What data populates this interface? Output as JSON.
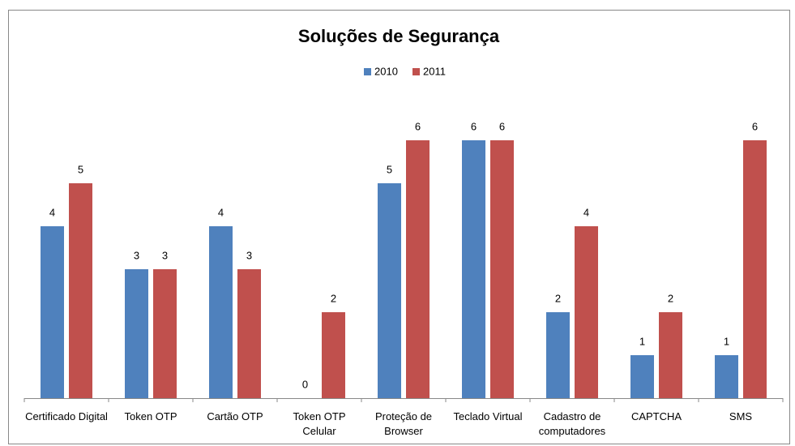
{
  "chart_data": {
    "type": "bar",
    "title": "Soluções de Segurança",
    "categories": [
      "Certificado Digital",
      "Token OTP",
      "Cartão OTP",
      "Token OTP Celular",
      "Proteção de Browser",
      "Teclado Virtual",
      "Cadastro de computadores",
      "CAPTCHA",
      "SMS"
    ],
    "series": [
      {
        "name": "2010",
        "color": "#4f81bd",
        "values": [
          4,
          3,
          4,
          0,
          5,
          6,
          2,
          1,
          1
        ]
      },
      {
        "name": "2011",
        "color": "#c0504d",
        "values": [
          5,
          3,
          3,
          2,
          6,
          6,
          4,
          2,
          6
        ]
      }
    ],
    "ylim": [
      0,
      7
    ],
    "legend": "top",
    "data_labels": true
  }
}
